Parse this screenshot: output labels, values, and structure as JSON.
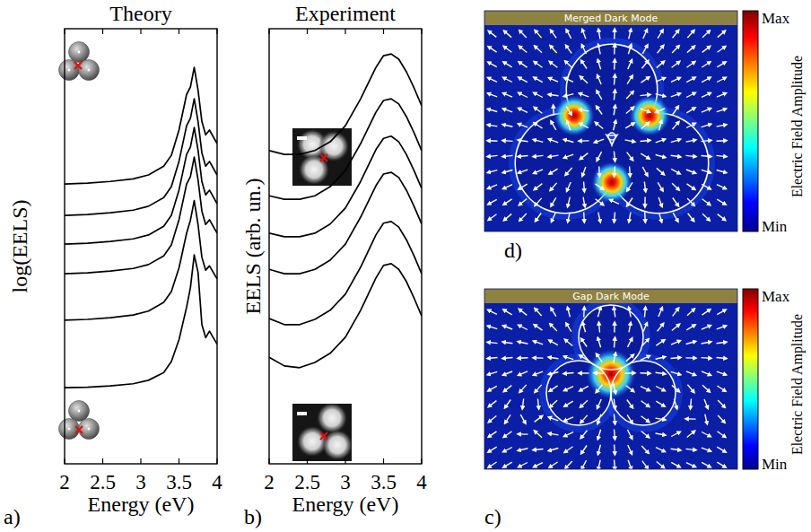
{
  "chart_data": [
    {
      "type": "line",
      "panel": "a)",
      "title": "Theory",
      "x_label": "Energy (eV)",
      "y_label": "log(EELS)",
      "x": [
        2.0,
        2.3,
        2.6,
        2.9,
        3.1,
        3.3,
        3.4,
        3.5,
        3.6,
        3.65,
        3.7,
        3.75,
        3.8,
        3.85,
        3.9,
        4.0
      ],
      "series": [
        {
          "values": [
            6.43,
            6.45,
            6.49,
            6.55,
            6.64,
            6.84,
            7.09,
            7.67,
            8.49,
            8.66,
            9.11,
            8.59,
            7.87,
            7.56,
            7.67,
            7.36
          ]
        },
        {
          "values": [
            5.71,
            5.73,
            5.77,
            5.83,
            5.92,
            6.12,
            6.37,
            6.95,
            7.77,
            7.94,
            8.39,
            7.87,
            7.15,
            6.84,
            6.95,
            6.64
          ]
        },
        {
          "values": [
            5.05,
            5.07,
            5.11,
            5.17,
            5.26,
            5.46,
            5.71,
            6.29,
            7.11,
            7.28,
            7.73,
            7.21,
            6.49,
            6.18,
            6.29,
            5.98
          ]
        },
        {
          "values": [
            4.37,
            4.39,
            4.43,
            4.49,
            4.58,
            4.78,
            5.03,
            5.61,
            6.43,
            6.6,
            7.05,
            6.53,
            5.81,
            5.5,
            5.61,
            5.3
          ]
        },
        {
          "values": [
            3.3,
            3.32,
            3.36,
            3.42,
            3.51,
            3.71,
            3.96,
            4.5,
            5.3,
            5.6,
            6.05,
            5.5,
            4.75,
            4.45,
            4.55,
            4.25
          ]
        },
        {
          "values": [
            1.75,
            1.76,
            1.79,
            1.84,
            1.92,
            2.1,
            2.35,
            2.85,
            3.6,
            4.05,
            4.8,
            4.4,
            3.2,
            2.9,
            3.05,
            2.75
          ]
        }
      ],
      "color": "#000000",
      "xlim": [
        2,
        4
      ],
      "xticks": [
        2,
        2.5,
        3,
        3.5,
        4
      ],
      "ylim": [
        0,
        10
      ],
      "tick_labels": "x"
    },
    {
      "type": "line",
      "panel": "b)",
      "title": "Experiment",
      "x_label": "Energy (eV)",
      "y_label": "EELS (arb. un.)",
      "x": [
        2.0,
        2.2,
        2.4,
        2.6,
        2.8,
        3.0,
        3.2,
        3.4,
        3.5,
        3.6,
        3.7,
        3.8,
        3.9,
        4.0
      ],
      "series": [
        {
          "values": [
            7.2,
            7.11,
            7.11,
            7.2,
            7.4,
            7.77,
            8.39,
            9.11,
            9.38,
            9.42,
            9.3,
            9.01,
            8.64,
            8.23
          ]
        },
        {
          "values": [
            6.16,
            6.08,
            6.08,
            6.16,
            6.37,
            6.74,
            7.36,
            8.08,
            8.35,
            8.39,
            8.27,
            7.98,
            7.61,
            7.2
          ]
        },
        {
          "values": [
            5.3,
            5.22,
            5.22,
            5.3,
            5.51,
            5.88,
            6.49,
            7.22,
            7.48,
            7.53,
            7.4,
            7.11,
            6.74,
            6.33
          ]
        },
        {
          "values": [
            4.47,
            4.37,
            4.37,
            4.47,
            4.68,
            5.05,
            5.67,
            6.39,
            6.66,
            6.7,
            6.58,
            6.29,
            5.92,
            5.51
          ]
        },
        {
          "values": [
            3.34,
            3.2,
            3.2,
            3.32,
            3.53,
            3.9,
            4.52,
            5.26,
            5.53,
            5.57,
            5.44,
            5.15,
            4.78,
            4.37
          ]
        },
        {
          "values": [
            2.45,
            2.25,
            2.21,
            2.33,
            2.54,
            2.91,
            3.53,
            4.27,
            4.56,
            4.6,
            4.47,
            4.19,
            3.81,
            3.4
          ]
        }
      ],
      "color": "#000000",
      "xlim": [
        2,
        4
      ],
      "xticks": [
        2,
        2.5,
        3,
        3.5,
        4
      ],
      "ylim": [
        0,
        10
      ],
      "tick_labels": "x"
    }
  ],
  "field_maps": [
    {
      "panel": "d)",
      "title": "Merged Dark Mode",
      "colorbar": {
        "max_label": "Max",
        "min_label": "Min",
        "label": "Electric Field Amplitude"
      }
    },
    {
      "panel": "c)",
      "title": "Gap Dark Mode",
      "colorbar": {
        "max_label": "Max",
        "min_label": "Min",
        "label": "Electric Field Amplitude"
      }
    }
  ]
}
